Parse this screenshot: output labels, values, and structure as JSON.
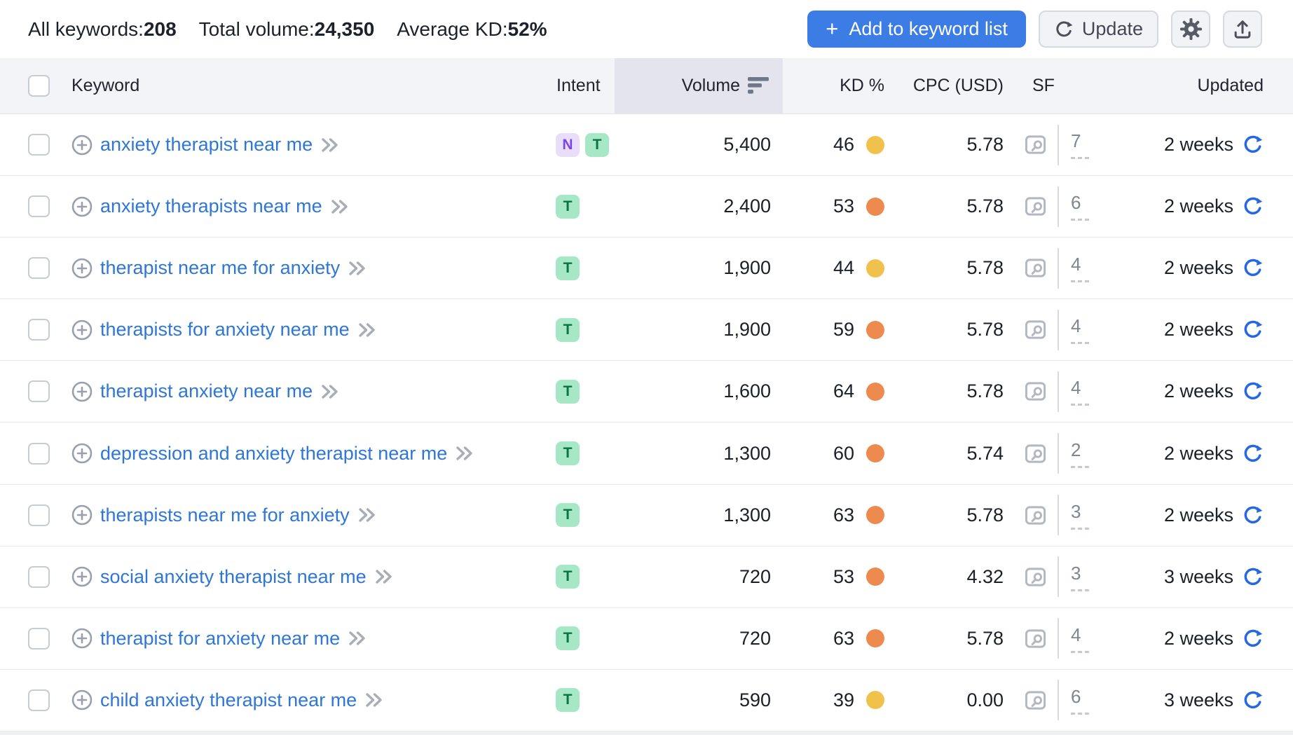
{
  "toolbar": {
    "stats": [
      {
        "label": "All keywords:",
        "value": "208"
      },
      {
        "label": "Total volume:",
        "value": "24,350"
      },
      {
        "label": "Average KD:",
        "value": "52%"
      }
    ],
    "add_to_list_label": "Add to keyword list",
    "update_label": "Update",
    "icons": {
      "add": "plus-icon",
      "update": "refresh-icon",
      "settings": "gear-icon",
      "export": "upload-icon"
    }
  },
  "table": {
    "headers": {
      "keyword": "Keyword",
      "intent": "Intent",
      "volume": "Volume",
      "kd": "KD %",
      "cpc": "CPC (USD)",
      "sf": "SF",
      "updated": "Updated"
    },
    "sort": {
      "column": "Volume",
      "direction": "desc"
    },
    "rows": [
      {
        "keyword": "anxiety therapist near me",
        "intents": [
          "N",
          "T"
        ],
        "volume": "5,400",
        "kd": "46",
        "kd_level": "possible",
        "cpc": "5.78",
        "sf": "7",
        "updated": "2 weeks"
      },
      {
        "keyword": "anxiety therapists near me",
        "intents": [
          "T"
        ],
        "volume": "2,400",
        "kd": "53",
        "kd_level": "difficult",
        "cpc": "5.78",
        "sf": "6",
        "updated": "2 weeks"
      },
      {
        "keyword": "therapist near me for anxiety",
        "intents": [
          "T"
        ],
        "volume": "1,900",
        "kd": "44",
        "kd_level": "possible",
        "cpc": "5.78",
        "sf": "4",
        "updated": "2 weeks"
      },
      {
        "keyword": "therapists for anxiety near me",
        "intents": [
          "T"
        ],
        "volume": "1,900",
        "kd": "59",
        "kd_level": "difficult",
        "cpc": "5.78",
        "sf": "4",
        "updated": "2 weeks"
      },
      {
        "keyword": "therapist anxiety near me",
        "intents": [
          "T"
        ],
        "volume": "1,600",
        "kd": "64",
        "kd_level": "difficult",
        "cpc": "5.78",
        "sf": "4",
        "updated": "2 weeks"
      },
      {
        "keyword": "depression and anxiety therapist near me",
        "intents": [
          "T"
        ],
        "volume": "1,300",
        "kd": "60",
        "kd_level": "difficult",
        "cpc": "5.74",
        "sf": "2",
        "updated": "2 weeks"
      },
      {
        "keyword": "therapists near me for anxiety",
        "intents": [
          "T"
        ],
        "volume": "1,300",
        "kd": "63",
        "kd_level": "difficult",
        "cpc": "5.78",
        "sf": "3",
        "updated": "2 weeks"
      },
      {
        "keyword": "social anxiety therapist near me",
        "intents": [
          "T"
        ],
        "volume": "720",
        "kd": "53",
        "kd_level": "difficult",
        "cpc": "4.32",
        "sf": "3",
        "updated": "3 weeks"
      },
      {
        "keyword": "therapist for anxiety near me",
        "intents": [
          "T"
        ],
        "volume": "720",
        "kd": "63",
        "kd_level": "difficult",
        "cpc": "5.78",
        "sf": "4",
        "updated": "2 weeks"
      },
      {
        "keyword": "child anxiety therapist near me",
        "intents": [
          "T"
        ],
        "volume": "590",
        "kd": "39",
        "kd_level": "possible",
        "cpc": "0.00",
        "sf": "6",
        "updated": "3 weeks"
      }
    ]
  },
  "colors": {
    "kd_possible": "#f0c24b",
    "kd_difficult": "#ed8a4e",
    "intent_n_bg": "#e9ddfa",
    "intent_n_fg": "#7d46e2",
    "intent_t_bg": "#a6e8c5",
    "intent_t_fg": "#0d7347",
    "link_blue": "#2e77d6",
    "primary_button_blue": "#3c7ce5",
    "refresh_blue": "#2668e3",
    "sorted_column_bg": "#e3e4ed",
    "header_bg": "#f3f4f8"
  }
}
